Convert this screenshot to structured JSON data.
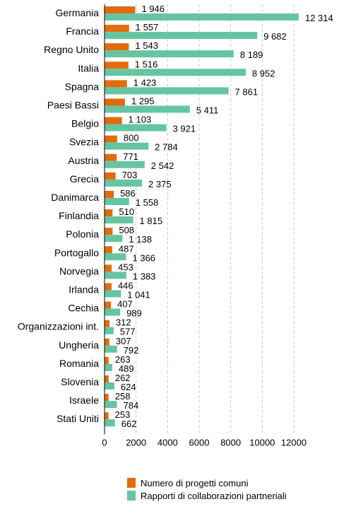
{
  "chart_data": {
    "type": "bar",
    "orientation": "horizontal",
    "categories": [
      "Germania",
      "Francia",
      "Regno Unito",
      "Italia",
      "Spagna",
      "Paesi Bassi",
      "Belgio",
      "Svezia",
      "Austria",
      "Grecia",
      "Danimarca",
      "Finlandia",
      "Polonia",
      "Portogallo",
      "Norvegia",
      "Irlanda",
      "Cechia",
      "Organizzazioni int.",
      "Ungheria",
      "Romania",
      "Slovenia",
      "Israele",
      "Stati Uniti"
    ],
    "series": [
      {
        "name": "Numero di progetti comuni",
        "color": "#e06c0d",
        "values": [
          1946,
          1557,
          1543,
          1516,
          1423,
          1295,
          1103,
          800,
          771,
          703,
          586,
          510,
          508,
          487,
          453,
          446,
          407,
          312,
          307,
          263,
          262,
          258,
          253
        ],
        "labels": [
          "1 946",
          "1 557",
          "1 543",
          "1 516",
          "1 423",
          "1 295",
          "1 103",
          "800",
          "771",
          "703",
          "586",
          "510",
          "508",
          "487",
          "453",
          "446",
          "407",
          "312",
          "307",
          "263",
          "262",
          "258",
          "253"
        ]
      },
      {
        "name": "Rapporti di collaborazioni partneriali",
        "color": "#66c5a0",
        "values": [
          12314,
          9682,
          8189,
          8952,
          7861,
          5411,
          3921,
          2784,
          2542,
          2375,
          1558,
          1815,
          1138,
          1366,
          1383,
          1041,
          989,
          577,
          792,
          489,
          624,
          784,
          662
        ],
        "labels": [
          "12 314",
          "9 682",
          "8 189",
          "8 952",
          "7 861",
          "5 411",
          "3 921",
          "2 784",
          "2 542",
          "2 375",
          "1 558",
          "1 815",
          "1 138",
          "1 366",
          "1 383",
          "1 041",
          "989",
          "577",
          "792",
          "489",
          "624",
          "784",
          "662"
        ]
      }
    ],
    "xlim": [
      0,
      12000
    ],
    "xticks": [
      0,
      2000,
      4000,
      6000,
      8000,
      10000,
      12000
    ],
    "xtick_labels": [
      "0",
      "2000",
      "4000",
      "6000",
      "8000",
      "10000",
      "12000"
    ],
    "grid": "vertical dashed",
    "legend_position": "bottom"
  }
}
